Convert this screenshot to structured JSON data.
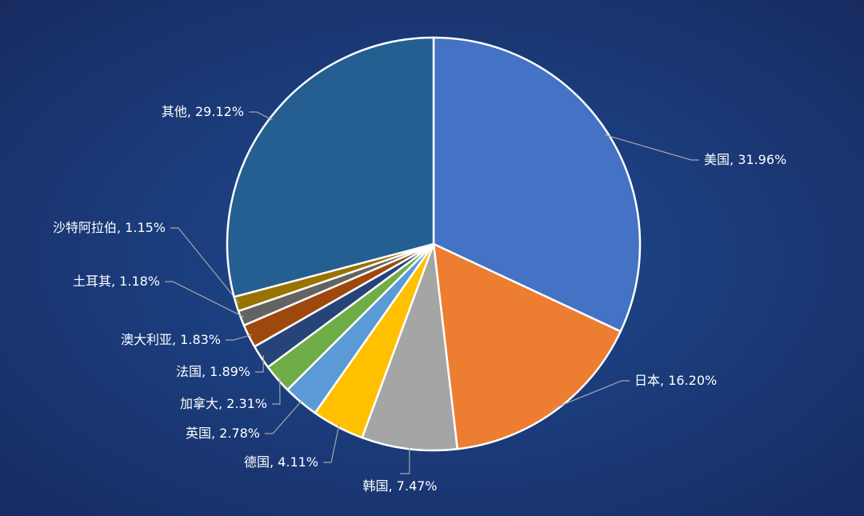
{
  "chart_data": {
    "type": "pie",
    "categories": [
      "美国",
      "日本",
      "韩国",
      "德国",
      "英国",
      "加拿大",
      "法国",
      "澳大利亚",
      "土耳其",
      "沙特阿拉伯",
      "其他"
    ],
    "values": [
      31.96,
      16.2,
      7.47,
      4.11,
      2.78,
      2.31,
      1.89,
      1.83,
      1.18,
      1.15,
      29.12
    ],
    "value_labels": [
      "31.96%",
      "16.20%",
      "7.47%",
      "4.11%",
      "2.78%",
      "2.31%",
      "1.89%",
      "1.83%",
      "1.18%",
      "1.15%",
      "29.12%"
    ],
    "label_separator": ", ",
    "colors": [
      "#4472c4",
      "#ed7d31",
      "#a5a5a5",
      "#ffc000",
      "#5b9bd5",
      "#70ad47",
      "#264478",
      "#9e480e",
      "#636363",
      "#997300",
      "#255e91"
    ]
  }
}
